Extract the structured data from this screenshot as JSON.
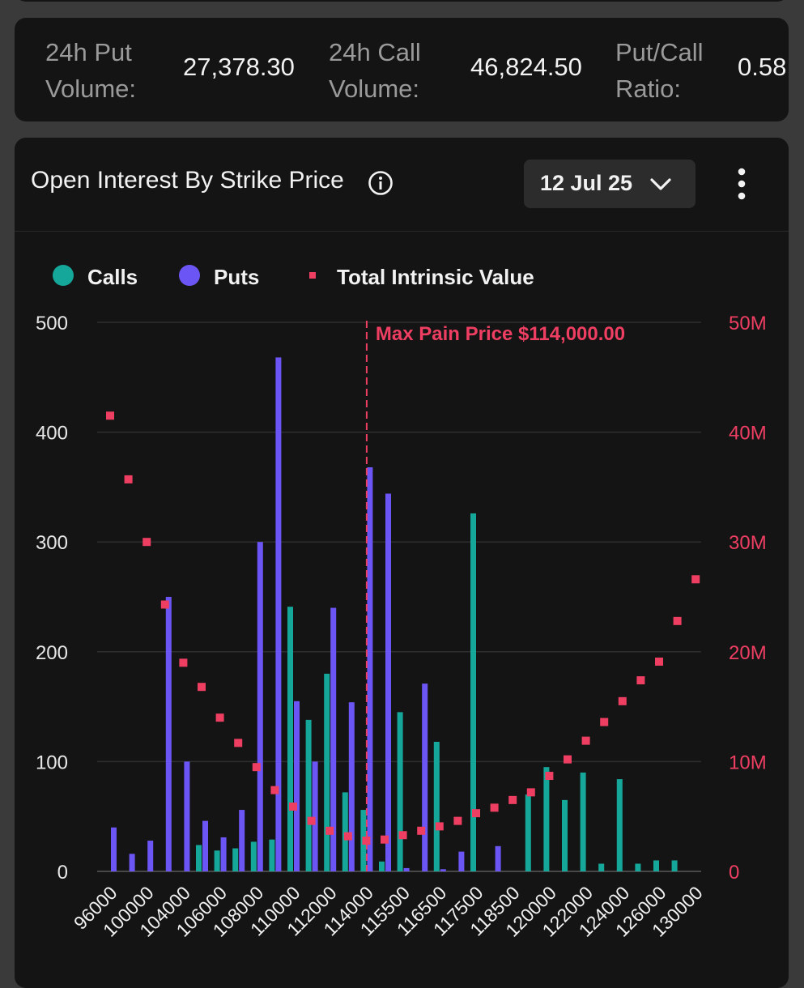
{
  "stats": [
    {
      "label_line1": "24h Put",
      "label_line2": "Volume:",
      "value": "27,378.30"
    },
    {
      "label_line1": "24h Call",
      "label_line2": "Volume:",
      "value": "46,824.50"
    },
    {
      "label_line1": "Put/Call",
      "label_line2": "Ratio:",
      "value": "0.58"
    }
  ],
  "chart_header": {
    "title": "Open Interest By Strike Price",
    "date_selected": "12 Jul 25",
    "info_icon": "info-circle-icon",
    "menu_icon": "kebab-menu-icon",
    "dropdown_icon": "chevron-down-icon"
  },
  "colors": {
    "calls": "#14a79a",
    "puts": "#6c55f5",
    "intrinsic": "#ee3e62",
    "grid": "#2e2e2e",
    "axis_text_left": "#e6e6e6",
    "axis_text_right": "#ee3e62"
  },
  "chart_data": {
    "type": "bar",
    "legend": [
      "Calls",
      "Puts",
      "Total Intrinsic Value"
    ],
    "legend_position": "top-left",
    "annotation": {
      "text": "Max Pain Price $114,000.00",
      "x": "114000"
    },
    "y_left": {
      "ticks": [
        "0",
        "100",
        "200",
        "300",
        "400",
        "500"
      ],
      "ylim": [
        0,
        500
      ]
    },
    "y_right": {
      "ticks": [
        "0",
        "10M",
        "20M",
        "30M",
        "40M",
        "50M"
      ],
      "ylim": [
        0,
        50000000
      ]
    },
    "grid": true,
    "categories": [
      "96000",
      "98000",
      "100000",
      "102000",
      "104000",
      "105000",
      "106000",
      "107000",
      "108000",
      "109000",
      "110000",
      "111000",
      "112000",
      "113000",
      "114000",
      "115000",
      "115500",
      "116000",
      "116500",
      "117000",
      "117500",
      "118000",
      "118500",
      "119000",
      "120000",
      "121000",
      "122000",
      "123000",
      "124000",
      "125000",
      "126000",
      "128000",
      "130000"
    ],
    "x_tick_labels": [
      "96000",
      "100000",
      "104000",
      "106000",
      "108000",
      "110000",
      "112000",
      "114000",
      "115500",
      "116500",
      "117500",
      "118500",
      "120000",
      "122000",
      "124000",
      "126000",
      "130000"
    ],
    "series": [
      {
        "name": "Calls",
        "values": [
          0,
          0,
          0,
          0,
          0,
          24,
          19,
          21,
          27,
          29,
          241,
          138,
          180,
          72,
          56,
          9,
          145,
          0,
          118,
          0,
          326,
          0,
          0,
          70,
          95,
          65,
          90,
          7,
          84,
          7,
          10,
          10,
          0
        ]
      },
      {
        "name": "Puts",
        "values": [
          40,
          16,
          28,
          250,
          100,
          46,
          31,
          56,
          300,
          468,
          155,
          100,
          240,
          154,
          368,
          344,
          3,
          171,
          2,
          18,
          0,
          23,
          0,
          0,
          0,
          0,
          0,
          0,
          0,
          0,
          0,
          0,
          0
        ]
      },
      {
        "name": "Total Intrinsic Value",
        "values": [
          41500000,
          35700000,
          30000000,
          24300000,
          19000000,
          16800000,
          14000000,
          11700000,
          9500000,
          7400000,
          5900000,
          4600000,
          3700000,
          3200000,
          2800000,
          2900000,
          3300000,
          3700000,
          4100000,
          4600000,
          5300000,
          5800000,
          6500000,
          7200000,
          8700000,
          10200000,
          11900000,
          13600000,
          15500000,
          17400000,
          19100000,
          22800000,
          26600000
        ]
      }
    ]
  }
}
